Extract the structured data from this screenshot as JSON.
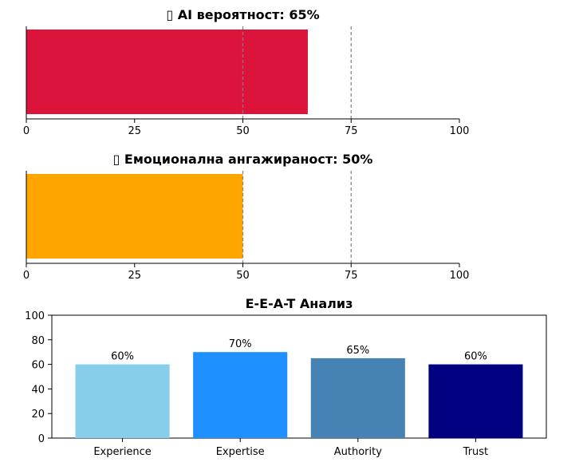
{
  "chart_data": [
    {
      "type": "bar",
      "orientation": "horizontal",
      "title": "▯ AI вероятност: 65%",
      "values": [
        65
      ],
      "color": "#dc143c",
      "xlim": [
        0,
        100
      ],
      "xticks": [
        "0",
        "25",
        "50",
        "75",
        "100"
      ],
      "reference_lines": [
        50,
        75
      ],
      "xlabel": "",
      "ylabel": ""
    },
    {
      "type": "bar",
      "orientation": "horizontal",
      "title": "▯ Емоционална ангажираност: 50%",
      "values": [
        50
      ],
      "color": "#ffa500",
      "xlim": [
        0,
        100
      ],
      "xticks": [
        "0",
        "25",
        "50",
        "75",
        "100"
      ],
      "reference_lines": [
        50,
        75
      ],
      "xlabel": "",
      "ylabel": ""
    },
    {
      "type": "bar",
      "title": "E-E-A-T Анализ",
      "categories": [
        "Experience",
        "Expertise",
        "Authority",
        "Trust"
      ],
      "values": [
        60,
        70,
        65,
        60
      ],
      "data_labels": [
        "60%",
        "70%",
        "65%",
        "60%"
      ],
      "colors": [
        "#87ceeb",
        "#1e90ff",
        "#4682b4",
        "#000080"
      ],
      "ylim": [
        0,
        100
      ],
      "yticks": [
        "0",
        "20",
        "40",
        "60",
        "80",
        "100"
      ],
      "xlabel": "",
      "ylabel": ""
    }
  ]
}
